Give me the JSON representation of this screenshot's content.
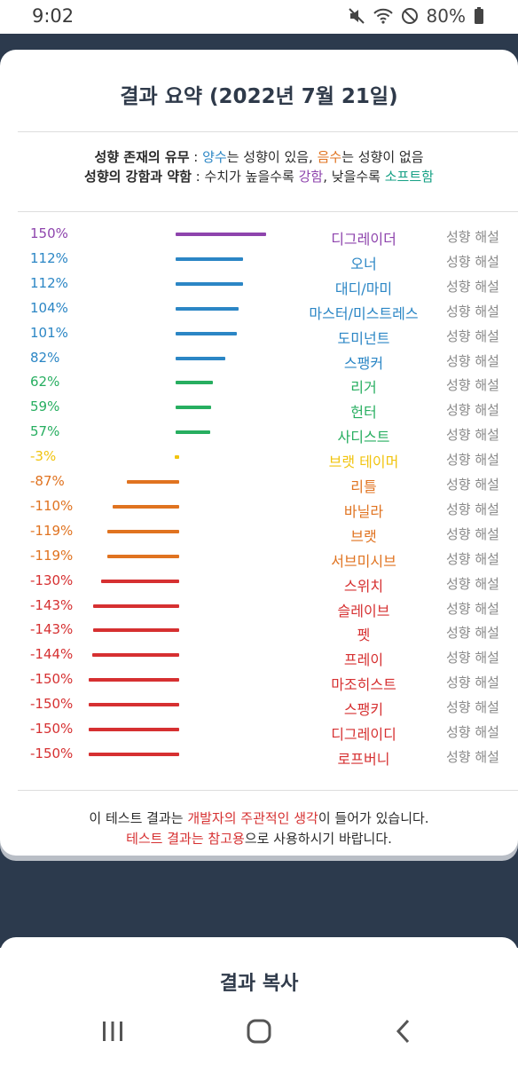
{
  "status": {
    "time": "9:02",
    "battery": "80%"
  },
  "card": {
    "title": "결과 요약 (2022년 7월 21일)",
    "legend1": {
      "label": "성향 존재의 유무",
      "colon": " : ",
      "pos": "양수",
      "pos_text": "는 성향이 있음, ",
      "neg": "음수",
      "neg_text": "는 성향이 없음"
    },
    "legend2": {
      "label": "성향의 강함과 약함",
      "colon": " : 수치가 높을수록 ",
      "strong": "강함",
      "mid": ", 낮을수록 ",
      "soft": "소프트함"
    },
    "rows": [
      {
        "pct": "150%",
        "name": "디그레이더",
        "value": 150,
        "color": "#8e44ad",
        "interp": "성향 해설"
      },
      {
        "pct": "112%",
        "name": "오너",
        "value": 112,
        "color": "#2b86c5",
        "interp": "성향 해설"
      },
      {
        "pct": "112%",
        "name": "대디/마미",
        "value": 112,
        "color": "#2b86c5",
        "interp": "성향 해설"
      },
      {
        "pct": "104%",
        "name": "마스터/미스트레스",
        "value": 104,
        "color": "#2b86c5",
        "interp": "성향 해설"
      },
      {
        "pct": "101%",
        "name": "도미넌트",
        "value": 101,
        "color": "#2b86c5",
        "interp": "성향 해설"
      },
      {
        "pct": "82%",
        "name": "스팽커",
        "value": 82,
        "color": "#2b86c5",
        "interp": "성향 해설"
      },
      {
        "pct": "62%",
        "name": "리거",
        "value": 62,
        "color": "#27ae60",
        "interp": "성향 해설"
      },
      {
        "pct": "59%",
        "name": "헌터",
        "value": 59,
        "color": "#27ae60",
        "interp": "성향 해설"
      },
      {
        "pct": "57%",
        "name": "사디스트",
        "value": 57,
        "color": "#27ae60",
        "interp": "성향 해설"
      },
      {
        "pct": "-3%",
        "name": "브랫 테이머",
        "value": -3,
        "color": "#f1c40f",
        "interp": "성향 해설"
      },
      {
        "pct": "-87%",
        "name": "리틀",
        "value": -87,
        "color": "#e07320",
        "interp": "성향 해설"
      },
      {
        "pct": "-110%",
        "name": "바닐라",
        "value": -110,
        "color": "#e07320",
        "interp": "성향 해설"
      },
      {
        "pct": "-119%",
        "name": "브랫",
        "value": -119,
        "color": "#e07320",
        "interp": "성향 해설"
      },
      {
        "pct": "-119%",
        "name": "서브미시브",
        "value": -119,
        "color": "#e07320",
        "interp": "성향 해설"
      },
      {
        "pct": "-130%",
        "name": "스위치",
        "value": -130,
        "color": "#d63031",
        "interp": "성향 해설"
      },
      {
        "pct": "-143%",
        "name": "슬레이브",
        "value": -143,
        "color": "#d63031",
        "interp": "성향 해설"
      },
      {
        "pct": "-143%",
        "name": "펫",
        "value": -143,
        "color": "#d63031",
        "interp": "성향 해설"
      },
      {
        "pct": "-144%",
        "name": "프레이",
        "value": -144,
        "color": "#d63031",
        "interp": "성향 해설"
      },
      {
        "pct": "-150%",
        "name": "마조히스트",
        "value": -150,
        "color": "#d63031",
        "interp": "성향 해설"
      },
      {
        "pct": "-150%",
        "name": "스팽키",
        "value": -150,
        "color": "#d63031",
        "interp": "성향 해설"
      },
      {
        "pct": "-150%",
        "name": "디그레이디",
        "value": -150,
        "color": "#d63031",
        "interp": "성향 해설"
      },
      {
        "pct": "-150%",
        "name": "로프버니",
        "value": -150,
        "color": "#d63031",
        "interp": "성향 해설"
      }
    ],
    "footer": {
      "line1_a": "이 테스트 결과는 ",
      "line1_b": "개발자의 주관적인 생각",
      "line1_c": "이 들어가 있습니다.",
      "line2_a": "테스트 결과는 참고용",
      "line2_b": "으로 사용하시기 바랍니다."
    }
  },
  "copy_title": "결과 복사",
  "nav": {
    "recent": "recent-apps",
    "home": "home",
    "back": "back"
  }
}
